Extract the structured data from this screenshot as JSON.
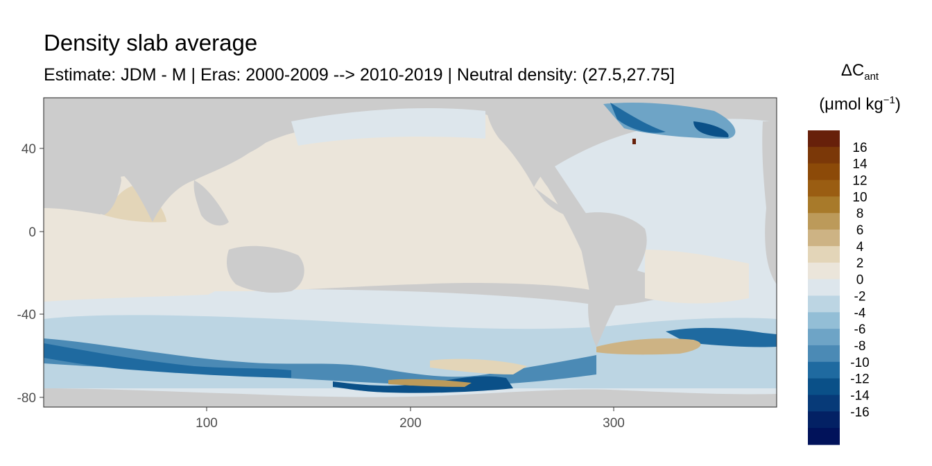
{
  "map": {
    "title": "Density slab average",
    "subtitle": "Estimate: JDM - M | Eras: 2000-2009 --> 2010-2019 | Neutral density: (27.5,27.75]",
    "x_axis": {
      "ticks": [
        "100",
        "200",
        "300"
      ],
      "range": [
        20,
        380
      ]
    },
    "y_axis": {
      "ticks": [
        "40",
        "0",
        "-40",
        "-80"
      ],
      "range": [
        -85,
        65
      ]
    },
    "panel_background": "#cccccc",
    "legend": {
      "title_main": "ΔC",
      "title_sub": "ant",
      "unit_prefix": "(μmol kg",
      "unit_sup": "−1",
      "unit_suffix": ")",
      "labels": [
        "16",
        "14",
        "12",
        "10",
        "8",
        "6",
        "4",
        "2",
        "0",
        "-2",
        "-4",
        "-6",
        "-8",
        "-10",
        "-12",
        "-14",
        "-16"
      ],
      "colors": [
        "#67200a",
        "#7b3808",
        "#8c4a08",
        "#9a5d12",
        "#a87a2a",
        "#bc9a5a",
        "#cdb384",
        "#e3d5b8",
        "#ebe5da",
        "#dde6ec",
        "#bcd5e3",
        "#93bed6",
        "#6ea4c6",
        "#4b8ab5",
        "#1f6aa0",
        "#0a5088",
        "#073a78",
        "#032164",
        "#01125a"
      ]
    },
    "regions": [
      {
        "name": "north-pacific",
        "value": -1
      },
      {
        "name": "pacific-interior",
        "value": 0.5
      },
      {
        "name": "arabian-sea",
        "value": 3
      },
      {
        "name": "north-atlantic",
        "value": -8
      },
      {
        "name": "southern-ocean",
        "value": -10
      }
    ]
  }
}
